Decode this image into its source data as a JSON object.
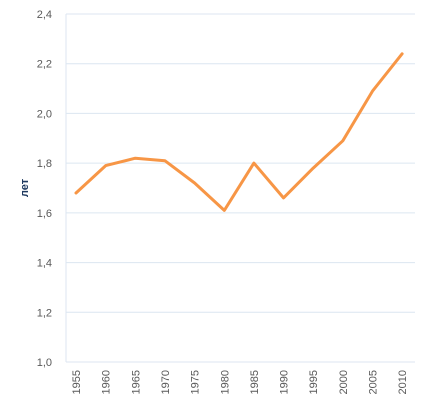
{
  "chart_data": {
    "type": "line",
    "title": "",
    "xlabel": "",
    "ylabel": "лет",
    "categories": [
      "1955",
      "1960",
      "1965",
      "1970",
      "1975",
      "1980",
      "1985",
      "1990",
      "1995",
      "2000",
      "2005",
      "2010"
    ],
    "series": [
      {
        "values": [
          1.68,
          1.79,
          1.82,
          1.81,
          1.72,
          1.61,
          1.8,
          1.66,
          1.78,
          1.89,
          2.09,
          2.24
        ],
        "color": "#f79646"
      }
    ],
    "yticks": [
      "1,0",
      "1,2",
      "1,4",
      "1,6",
      "1,8",
      "2,0",
      "2,2",
      "2,4"
    ],
    "ylim": [
      1.0,
      2.4
    ],
    "grid": true,
    "gridColor": "#dce6f1",
    "legend": "none"
  }
}
